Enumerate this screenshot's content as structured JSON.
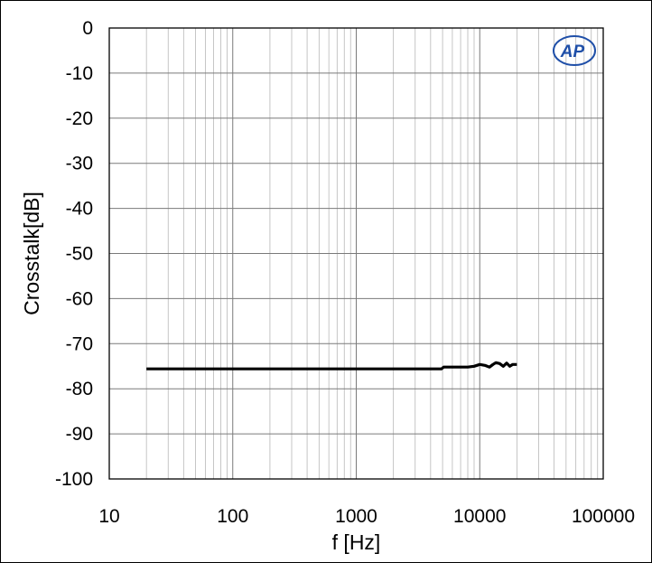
{
  "chart_data": {
    "type": "line",
    "title": "",
    "xlabel": "f [Hz]",
    "ylabel": "Crosstalk[dB]",
    "x_scale": "log",
    "xlim": [
      10,
      100000
    ],
    "ylim": [
      -100,
      0
    ],
    "x_ticks": [
      10,
      100,
      1000,
      10000,
      100000
    ],
    "x_tick_labels": [
      "10",
      "100",
      "1000",
      "10000",
      "100000"
    ],
    "y_ticks": [
      0,
      -10,
      -20,
      -30,
      -40,
      -50,
      -60,
      -70,
      -80,
      -90,
      -100
    ],
    "y_tick_labels": [
      "0",
      "-10",
      "-20",
      "-30",
      "-40",
      "-50",
      "-60",
      "-70",
      "-80",
      "-90",
      "-100"
    ],
    "grid": true,
    "legend": "none",
    "series": [
      {
        "color": "#000000",
        "x": [
          20,
          100,
          1000,
          4900,
          5100,
          8000,
          9000,
          10000,
          11000,
          12000,
          12800,
          13500,
          14500,
          15500,
          16500,
          17500,
          18500,
          20000
        ],
        "y": [
          -75.6,
          -75.6,
          -75.6,
          -75.6,
          -75.2,
          -75.2,
          -75.0,
          -74.6,
          -74.8,
          -75.2,
          -74.6,
          -74.2,
          -74.4,
          -75.0,
          -74.3,
          -75.0,
          -74.6,
          -74.6
        ]
      }
    ]
  },
  "logo": {
    "text": "AP",
    "color": "#1f4fa8"
  }
}
